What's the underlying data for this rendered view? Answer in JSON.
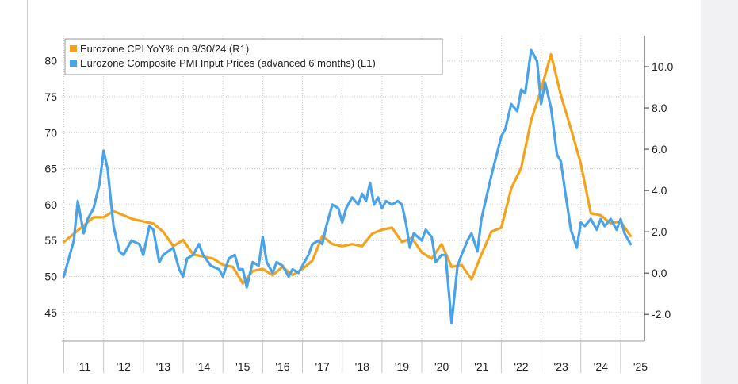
{
  "chart_data": {
    "type": "line",
    "title": "",
    "xlabel": "",
    "ylabel": "",
    "x_ticks": [
      "'11",
      "'12",
      "'13",
      "'14",
      "'15",
      "'16",
      "'17",
      "'18",
      "'19",
      "'20",
      "'21",
      "'22",
      "'23",
      "'24",
      "'25"
    ],
    "x_range": [
      2010.45,
      2025.1
    ],
    "left_axis": {
      "ticks": [
        "45",
        "50",
        "55",
        "60",
        "65",
        "70",
        "75",
        "80"
      ],
      "ylim": [
        41,
        83.5
      ]
    },
    "right_axis": {
      "ticks": [
        "-2.0",
        "0.0",
        "2.0",
        "4.0",
        "6.0",
        "8.0",
        "10.0"
      ],
      "ylim": [
        -3.3,
        11.5
      ]
    },
    "legend": {
      "placement": "top-left"
    },
    "grid": true,
    "series": [
      {
        "name": "Eurozone CPI YoY% on 9/30/24 (R1)",
        "axis": "right",
        "color": "#f5a21b",
        "points": [
          [
            2010.5,
            1.5
          ],
          [
            2010.75,
            1.9
          ],
          [
            2011.0,
            2.3
          ],
          [
            2011.25,
            2.7
          ],
          [
            2011.5,
            2.7
          ],
          [
            2011.75,
            3.0
          ],
          [
            2012.0,
            2.8
          ],
          [
            2012.25,
            2.6
          ],
          [
            2012.5,
            2.5
          ],
          [
            2012.75,
            2.4
          ],
          [
            2013.0,
            2.0
          ],
          [
            2013.25,
            1.3
          ],
          [
            2013.5,
            1.6
          ],
          [
            2013.75,
            0.9
          ],
          [
            2014.0,
            0.8
          ],
          [
            2014.25,
            0.7
          ],
          [
            2014.5,
            0.4
          ],
          [
            2014.75,
            0.3
          ],
          [
            2015.0,
            -0.5
          ],
          [
            2015.25,
            0.1
          ],
          [
            2015.5,
            0.2
          ],
          [
            2015.75,
            -0.1
          ],
          [
            2016.0,
            0.3
          ],
          [
            2016.25,
            -0.1
          ],
          [
            2016.5,
            0.2
          ],
          [
            2016.75,
            0.6
          ],
          [
            2017.0,
            1.8
          ],
          [
            2017.25,
            1.4
          ],
          [
            2017.5,
            1.3
          ],
          [
            2017.75,
            1.4
          ],
          [
            2018.0,
            1.3
          ],
          [
            2018.25,
            1.9
          ],
          [
            2018.5,
            2.1
          ],
          [
            2018.75,
            2.2
          ],
          [
            2019.0,
            1.5
          ],
          [
            2019.25,
            1.7
          ],
          [
            2019.5,
            1.0
          ],
          [
            2019.75,
            0.7
          ],
          [
            2020.0,
            1.4
          ],
          [
            2020.25,
            0.3
          ],
          [
            2020.5,
            0.4
          ],
          [
            2020.75,
            -0.3
          ],
          [
            2021.0,
            0.9
          ],
          [
            2021.25,
            2.0
          ],
          [
            2021.5,
            2.2
          ],
          [
            2021.75,
            4.1
          ],
          [
            2022.0,
            5.1
          ],
          [
            2022.25,
            7.4
          ],
          [
            2022.5,
            8.9
          ],
          [
            2022.75,
            10.6
          ],
          [
            2023.0,
            8.6
          ],
          [
            2023.25,
            7.0
          ],
          [
            2023.5,
            5.3
          ],
          [
            2023.75,
            2.9
          ],
          [
            2024.0,
            2.8
          ],
          [
            2024.25,
            2.4
          ],
          [
            2024.5,
            2.5
          ],
          [
            2024.75,
            1.8
          ]
        ]
      },
      {
        "name": "Eurozone Composite PMI Input Prices (advanced 6 months) (L1)",
        "axis": "left",
        "color": "#4aa3e8",
        "points": [
          [
            2010.5,
            50.0
          ],
          [
            2010.75,
            55.0
          ],
          [
            2010.85,
            60.5
          ],
          [
            2011.0,
            56.0
          ],
          [
            2011.1,
            58.0
          ],
          [
            2011.25,
            59.5
          ],
          [
            2011.4,
            63.0
          ],
          [
            2011.5,
            67.5
          ],
          [
            2011.6,
            65.0
          ],
          [
            2011.75,
            57.0
          ],
          [
            2011.9,
            53.5
          ],
          [
            2012.0,
            53.0
          ],
          [
            2012.2,
            55.0
          ],
          [
            2012.4,
            54.5
          ],
          [
            2012.5,
            53.0
          ],
          [
            2012.65,
            57.0
          ],
          [
            2012.75,
            56.5
          ],
          [
            2012.9,
            52.0
          ],
          [
            2013.0,
            53.0
          ],
          [
            2013.25,
            54.0
          ],
          [
            2013.4,
            51.0
          ],
          [
            2013.5,
            50.0
          ],
          [
            2013.6,
            52.5
          ],
          [
            2013.75,
            53.0
          ],
          [
            2013.9,
            54.5
          ],
          [
            2014.0,
            53.0
          ],
          [
            2014.2,
            51.5
          ],
          [
            2014.4,
            51.0
          ],
          [
            2014.5,
            50.0
          ],
          [
            2014.65,
            52.5
          ],
          [
            2014.8,
            53.0
          ],
          [
            2014.9,
            51.0
          ],
          [
            2015.0,
            51.0
          ],
          [
            2015.1,
            48.5
          ],
          [
            2015.25,
            52.0
          ],
          [
            2015.4,
            51.5
          ],
          [
            2015.5,
            55.5
          ],
          [
            2015.6,
            52.0
          ],
          [
            2015.75,
            50.5
          ],
          [
            2015.85,
            52.0
          ],
          [
            2016.0,
            51.5
          ],
          [
            2016.15,
            50.0
          ],
          [
            2016.25,
            51.0
          ],
          [
            2016.4,
            50.5
          ],
          [
            2016.5,
            51.5
          ],
          [
            2016.65,
            53.0
          ],
          [
            2016.75,
            54.5
          ],
          [
            2016.9,
            55.0
          ],
          [
            2017.0,
            54.5
          ],
          [
            2017.1,
            57.0
          ],
          [
            2017.25,
            60.0
          ],
          [
            2017.4,
            59.5
          ],
          [
            2017.5,
            57.5
          ],
          [
            2017.6,
            59.5
          ],
          [
            2017.75,
            61.0
          ],
          [
            2017.9,
            60.0
          ],
          [
            2018.0,
            61.5
          ],
          [
            2018.1,
            60.5
          ],
          [
            2018.2,
            63.0
          ],
          [
            2018.3,
            60.0
          ],
          [
            2018.4,
            61.0
          ],
          [
            2018.5,
            59.5
          ],
          [
            2018.6,
            60.5
          ],
          [
            2018.75,
            60.0
          ],
          [
            2018.9,
            60.5
          ],
          [
            2019.0,
            60.0
          ],
          [
            2019.1,
            57.5
          ],
          [
            2019.2,
            54.0
          ],
          [
            2019.3,
            56.0
          ],
          [
            2019.4,
            55.5
          ],
          [
            2019.5,
            55.0
          ],
          [
            2019.6,
            56.5
          ],
          [
            2019.75,
            55.5
          ],
          [
            2019.85,
            52.0
          ],
          [
            2020.0,
            53.0
          ],
          [
            2020.1,
            53.0
          ],
          [
            2020.25,
            43.5
          ],
          [
            2020.4,
            51.5
          ],
          [
            2020.5,
            53.0
          ],
          [
            2020.65,
            55.0
          ],
          [
            2020.75,
            56.0
          ],
          [
            2020.9,
            53.5
          ],
          [
            2021.0,
            58.0
          ],
          [
            2021.25,
            64.0
          ],
          [
            2021.5,
            69.5
          ],
          [
            2021.6,
            70.5
          ],
          [
            2021.75,
            74.0
          ],
          [
            2021.9,
            73.0
          ],
          [
            2022.0,
            76.0
          ],
          [
            2022.1,
            75.5
          ],
          [
            2022.25,
            81.5
          ],
          [
            2022.4,
            80.0
          ],
          [
            2022.5,
            74.0
          ],
          [
            2022.6,
            77.0
          ],
          [
            2022.75,
            73.5
          ],
          [
            2022.9,
            67.0
          ],
          [
            2023.0,
            66.0
          ],
          [
            2023.1,
            62.0
          ],
          [
            2023.25,
            56.5
          ],
          [
            2023.4,
            54.0
          ],
          [
            2023.5,
            57.5
          ],
          [
            2023.6,
            57.0
          ],
          [
            2023.75,
            58.0
          ],
          [
            2023.9,
            56.5
          ],
          [
            2024.0,
            58.0
          ],
          [
            2024.1,
            57.0
          ],
          [
            2024.25,
            58.0
          ],
          [
            2024.4,
            56.5
          ],
          [
            2024.5,
            58.0
          ],
          [
            2024.6,
            56.0
          ],
          [
            2024.75,
            54.5
          ]
        ]
      }
    ]
  }
}
